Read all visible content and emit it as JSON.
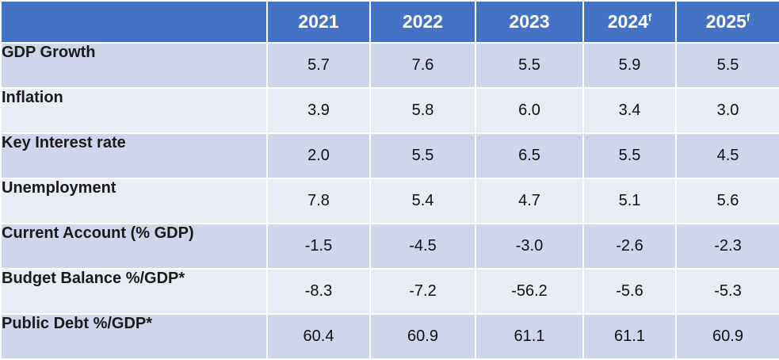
{
  "table": {
    "columns": [
      {
        "year": "2021",
        "sup": ""
      },
      {
        "year": "2022",
        "sup": ""
      },
      {
        "year": "2023",
        "sup": ""
      },
      {
        "year": "2024",
        "sup": "f"
      },
      {
        "year": "2025",
        "sup": "f"
      }
    ],
    "rows": [
      {
        "label": "GDP Growth",
        "values": [
          "5.7",
          "7.6",
          "5.5",
          "5.9",
          "5.5"
        ]
      },
      {
        "label": "Inflation",
        "values": [
          "3.9",
          "5.8",
          "6.0",
          "3.4",
          "3.0"
        ]
      },
      {
        "label": "Key Interest rate",
        "values": [
          "2.0",
          "5.5",
          "6.5",
          "5.5",
          "4.5"
        ]
      },
      {
        "label": "Unemployment",
        "values": [
          "7.8",
          "5.4",
          "4.7",
          "5.1",
          "5.6"
        ]
      },
      {
        "label": "Current Account (% GDP)",
        "values": [
          "-1.5",
          "-4.5",
          "-3.0",
          "-2.6",
          "-2.3"
        ]
      },
      {
        "label": "Budget Balance %/GDP*",
        "values": [
          "-8.3",
          "-7.2",
          "-56.2",
          "-5.6",
          "-5.3"
        ]
      },
      {
        "label": "Public Debt %/GDP*",
        "values": [
          "60.4",
          "60.9",
          "61.1",
          "61.1",
          "60.9"
        ]
      }
    ],
    "colors": {
      "header": "#4472c4",
      "row_dark": "#cfd5ea",
      "row_light": "#e9ebf5"
    }
  }
}
